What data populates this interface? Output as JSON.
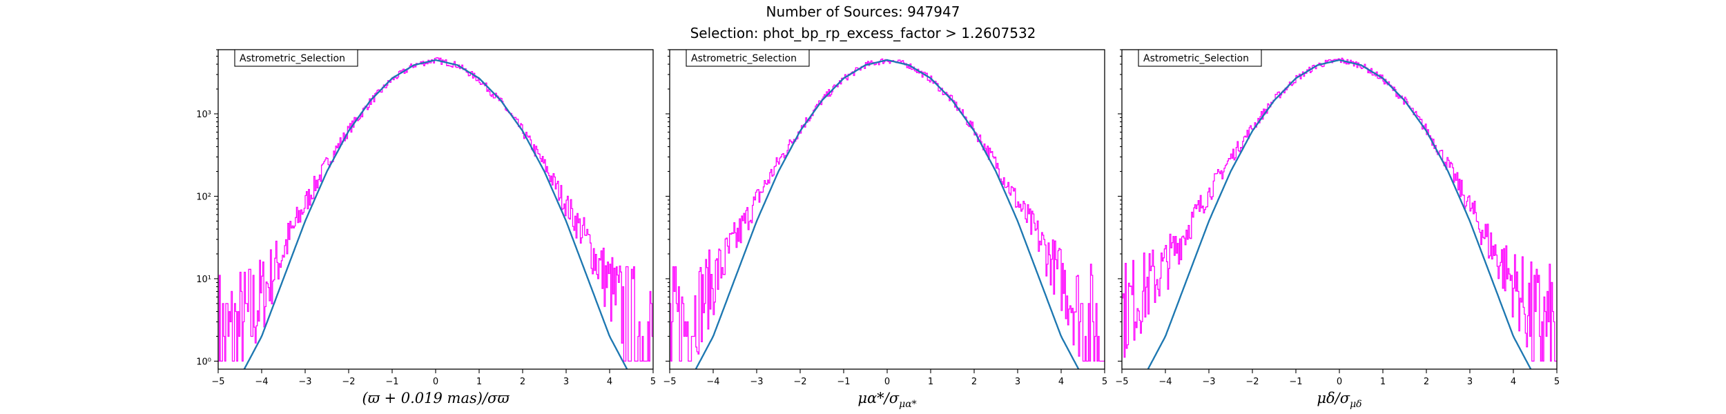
{
  "figure": {
    "title_line1": "Number of Sources: 947947",
    "title_line2": "Selection: phot_bp_rp_excess_factor > 1.2607532"
  },
  "colors": {
    "histogram": "#ff00ff",
    "model": "#008080",
    "model_overlay": "#1f77b4"
  },
  "chart_data": [
    {
      "type": "line",
      "legend": "Astrometric_Selection",
      "legend_position": "top-left",
      "xlabel": "(ϖ + 0.019 mas)/σϖ",
      "xlim": [
        -5,
        5
      ],
      "ylim": [
        0.8,
        6000
      ],
      "yscale": "log",
      "xticks": [
        -5,
        -4,
        -3,
        -2,
        -1,
        0,
        1,
        2,
        3,
        4,
        5
      ],
      "yticks": [
        {
          "value": 1,
          "label": "10⁰"
        },
        {
          "value": 10,
          "label": "10¹"
        },
        {
          "value": 100,
          "label": "10²"
        },
        {
          "value": 1000,
          "label": "10³"
        }
      ],
      "grid": false,
      "series": [
        {
          "kind": "histogram",
          "x": [
            -5,
            -4.5,
            -4,
            -3.5,
            -3,
            -2.5,
            -2,
            -1.5,
            -1,
            -0.5,
            0,
            0.5,
            1,
            1.5,
            2,
            2.5,
            3,
            3.5,
            4,
            4.5,
            5
          ],
          "y": [
            1.5,
            2,
            6,
            22,
            80,
            250,
            630,
            1400,
            2600,
            3900,
            4500,
            3900,
            2600,
            1400,
            620,
            240,
            80,
            28,
            8,
            2.5,
            1.5
          ]
        },
        {
          "kind": "model",
          "x": [
            -4.4,
            -4,
            -3.5,
            -3,
            -2.5,
            -2,
            -1.5,
            -1,
            -0.5,
            0,
            0.5,
            1,
            1.5,
            2,
            2.5,
            3,
            3.5,
            4,
            4.4
          ],
          "y": [
            0.8,
            2,
            10,
            50,
            200,
            620,
            1450,
            2700,
            3900,
            4500,
            3900,
            2700,
            1450,
            620,
            200,
            50,
            10,
            2,
            0.8
          ]
        }
      ]
    },
    {
      "type": "line",
      "legend": "Astrometric_Selection",
      "legend_position": "top-left",
      "xlabel": "μα*/σμα*",
      "xlim": [
        -5,
        5
      ],
      "ylim": [
        0.8,
        6000
      ],
      "yscale": "log",
      "xticks": [
        -5,
        -4,
        -3,
        -2,
        -1,
        0,
        1,
        2,
        3,
        4,
        5
      ],
      "grid": false,
      "series": [
        {
          "kind": "histogram",
          "x": [
            -5,
            -4.5,
            -4,
            -3.5,
            -3,
            -2.5,
            -2,
            -1.5,
            -1,
            -0.5,
            0,
            0.5,
            1,
            1.5,
            2,
            2.5,
            3,
            3.5,
            4,
            4.5,
            5
          ],
          "y": [
            2,
            3.5,
            9,
            28,
            90,
            260,
            650,
            1450,
            2650,
            3900,
            4500,
            3900,
            2650,
            1450,
            640,
            250,
            85,
            30,
            10,
            3.5,
            2
          ]
        },
        {
          "kind": "model",
          "x": [
            -4.4,
            -4,
            -3.5,
            -3,
            -2.5,
            -2,
            -1.5,
            -1,
            -0.5,
            0,
            0.5,
            1,
            1.5,
            2,
            2.5,
            3,
            3.5,
            4,
            4.4
          ],
          "y": [
            0.8,
            2,
            10,
            50,
            200,
            620,
            1450,
            2700,
            3900,
            4500,
            3900,
            2700,
            1450,
            620,
            200,
            50,
            10,
            2,
            0.8
          ]
        }
      ]
    },
    {
      "type": "line",
      "legend": "Astrometric_Selection",
      "legend_position": "top-left",
      "xlabel": "μδ/σμδ",
      "xlim": [
        -5,
        5
      ],
      "ylim": [
        0.8,
        6000
      ],
      "yscale": "log",
      "xticks": [
        -5,
        -4,
        -3,
        -2,
        -1,
        0,
        1,
        2,
        3,
        4,
        5
      ],
      "grid": false,
      "series": [
        {
          "kind": "histogram",
          "x": [
            -5,
            -4.5,
            -4,
            -3.5,
            -3,
            -2.5,
            -2,
            -1.5,
            -1,
            -0.5,
            0,
            0.5,
            1,
            1.5,
            2,
            2.5,
            3,
            3.5,
            4,
            4.5,
            5
          ],
          "y": [
            4,
            7,
            14,
            40,
            110,
            290,
            680,
            1480,
            2650,
            3900,
            4500,
            3900,
            2650,
            1450,
            640,
            240,
            75,
            24,
            9,
            3,
            2
          ]
        },
        {
          "kind": "model",
          "x": [
            -4.4,
            -4,
            -3.5,
            -3,
            -2.5,
            -2,
            -1.5,
            -1,
            -0.5,
            0,
            0.5,
            1,
            1.5,
            2,
            2.5,
            3,
            3.5,
            4,
            4.4
          ],
          "y": [
            0.8,
            2,
            10,
            50,
            200,
            620,
            1450,
            2700,
            3900,
            4500,
            3900,
            2700,
            1450,
            620,
            200,
            50,
            10,
            2,
            0.8
          ]
        }
      ]
    }
  ]
}
